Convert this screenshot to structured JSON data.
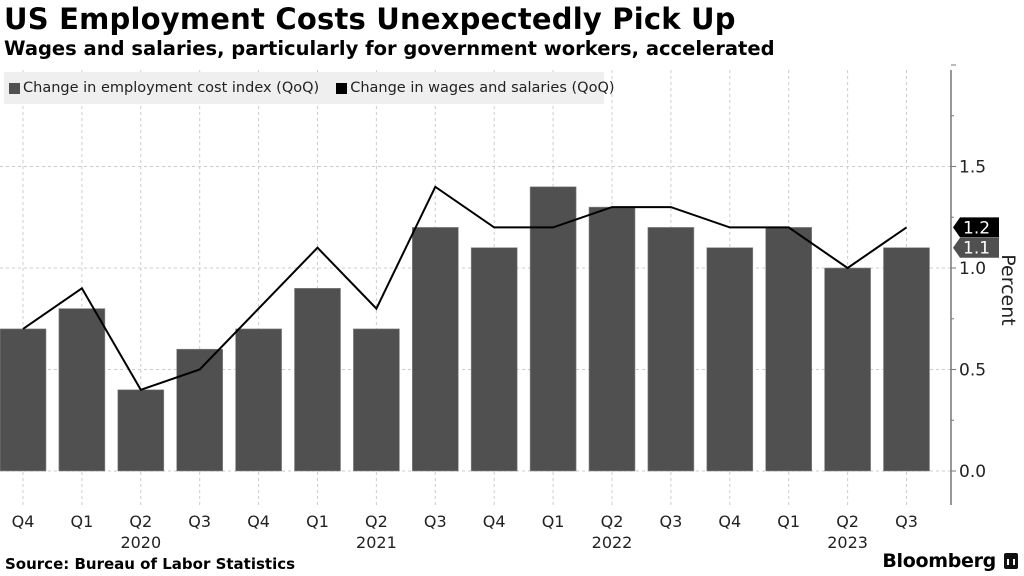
{
  "header": {
    "title": "US Employment Costs Unexpectedly Pick Up",
    "subtitle": "Wages and salaries, particularly for government workers, accelerated"
  },
  "footer": {
    "source": "Source: Bureau of Labor Statistics",
    "brand": "Bloomberg"
  },
  "colors": {
    "bar": "#505050",
    "line": "#000000",
    "grid": "#cccccc",
    "legend_bg": "#efefef"
  },
  "chart_data": {
    "type": "bar",
    "title": "US Employment Costs Unexpectedly Pick Up",
    "subtitle": "Wages and salaries, particularly for government workers, accelerated",
    "xlabel": "",
    "ylabel": "Percent",
    "ylim": [
      0,
      2.0
    ],
    "yticks": [
      0.0,
      0.5,
      1.0,
      1.5
    ],
    "ytick_labels": [
      "0.0",
      "0.5",
      "1.0",
      "1.5"
    ],
    "grid": true,
    "legend_position": "top-left",
    "y_axis_side": "right",
    "categories": [
      "Q4",
      "Q1",
      "Q2",
      "Q3",
      "Q4",
      "Q1",
      "Q2",
      "Q3",
      "Q4",
      "Q1",
      "Q2",
      "Q3",
      "Q4",
      "Q1",
      "Q2",
      "Q3"
    ],
    "year_labels": [
      {
        "index": 2,
        "label": "2020"
      },
      {
        "index": 6,
        "label": "2021"
      },
      {
        "index": 10,
        "label": "2022"
      },
      {
        "index": 14,
        "label": "2023"
      }
    ],
    "series": [
      {
        "name": "Change in employment cost index (QoQ)",
        "type": "bar",
        "color": "#505050",
        "values": [
          0.7,
          0.8,
          0.4,
          0.6,
          0.7,
          0.9,
          0.7,
          1.2,
          1.1,
          1.4,
          1.3,
          1.2,
          1.1,
          1.2,
          1.0,
          1.1
        ],
        "last_value_label": "1.1"
      },
      {
        "name": "Change in wages and salaries (QoQ)",
        "type": "line",
        "color": "#000000",
        "values": [
          0.7,
          0.9,
          0.4,
          0.5,
          0.8,
          1.1,
          0.8,
          1.4,
          1.2,
          1.2,
          1.3,
          1.3,
          1.2,
          1.2,
          1.0,
          1.2
        ],
        "last_value_label": "1.2"
      }
    ]
  }
}
